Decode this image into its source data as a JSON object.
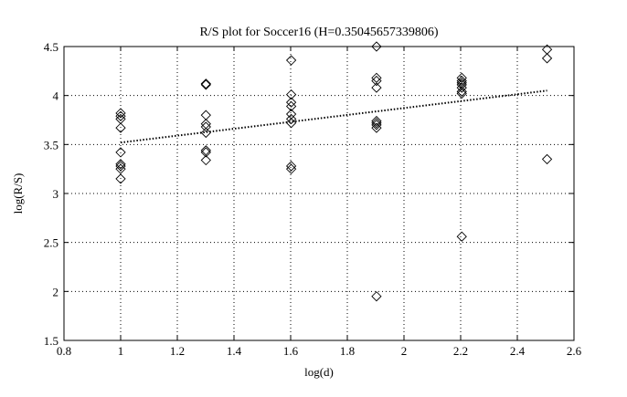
{
  "chart_data": {
    "type": "scatter",
    "title": "R/S plot for Soccer16 (H=0.35045657339806)",
    "xlabel": "log(d)",
    "ylabel": "log(R/S)",
    "xlim": [
      0.8,
      2.6
    ],
    "ylim": [
      1.5,
      4.5
    ],
    "xticks": [
      0.8,
      1,
      1.2,
      1.4,
      1.6,
      1.8,
      2,
      2.2,
      2.4,
      2.6
    ],
    "xtick_labels": [
      "0.8",
      "1",
      "1.2",
      "1.4",
      "1.6",
      "1.8",
      "2",
      "2.2",
      "2.4",
      "2.6"
    ],
    "yticks": [
      1.5,
      2,
      2.5,
      3,
      3.5,
      4,
      4.5
    ],
    "ytick_labels": [
      "1.5",
      "2",
      "2.5",
      "3",
      "3.5",
      "4",
      "4.5"
    ],
    "grid": true,
    "marker": "diamond",
    "points": [
      {
        "x": 1,
        "y": 3.82
      },
      {
        "x": 1,
        "y": 3.79
      },
      {
        "x": 1,
        "y": 3.76
      },
      {
        "x": 1,
        "y": 3.67
      },
      {
        "x": 1,
        "y": 3.42
      },
      {
        "x": 1,
        "y": 3.3
      },
      {
        "x": 1,
        "y": 3.28
      },
      {
        "x": 1,
        "y": 3.25
      },
      {
        "x": 1,
        "y": 3.15
      },
      {
        "x": 1.301,
        "y": 4.12
      },
      {
        "x": 1.301,
        "y": 4.11
      },
      {
        "x": 1.301,
        "y": 3.8
      },
      {
        "x": 1.301,
        "y": 3.71
      },
      {
        "x": 1.301,
        "y": 3.68
      },
      {
        "x": 1.301,
        "y": 3.62
      },
      {
        "x": 1.301,
        "y": 3.44
      },
      {
        "x": 1.301,
        "y": 3.42
      },
      {
        "x": 1.301,
        "y": 3.34
      },
      {
        "x": 1.602,
        "y": 4.36
      },
      {
        "x": 1.602,
        "y": 4.01
      },
      {
        "x": 1.602,
        "y": 3.93
      },
      {
        "x": 1.602,
        "y": 3.89
      },
      {
        "x": 1.602,
        "y": 3.81
      },
      {
        "x": 1.602,
        "y": 3.76
      },
      {
        "x": 1.602,
        "y": 3.72
      },
      {
        "x": 1.602,
        "y": 3.28
      },
      {
        "x": 1.602,
        "y": 3.25
      },
      {
        "x": 1.903,
        "y": 4.5
      },
      {
        "x": 1.903,
        "y": 4.18
      },
      {
        "x": 1.903,
        "y": 4.15
      },
      {
        "x": 1.903,
        "y": 4.08
      },
      {
        "x": 1.903,
        "y": 3.74
      },
      {
        "x": 1.903,
        "y": 3.72
      },
      {
        "x": 1.903,
        "y": 3.7
      },
      {
        "x": 1.903,
        "y": 3.67
      },
      {
        "x": 1.903,
        "y": 1.95
      },
      {
        "x": 2.204,
        "y": 4.18
      },
      {
        "x": 2.204,
        "y": 4.15
      },
      {
        "x": 2.204,
        "y": 4.13
      },
      {
        "x": 2.204,
        "y": 4.11
      },
      {
        "x": 2.204,
        "y": 4.08
      },
      {
        "x": 2.204,
        "y": 4.04
      },
      {
        "x": 2.204,
        "y": 4.02
      },
      {
        "x": 2.204,
        "y": 2.56
      },
      {
        "x": 2.505,
        "y": 4.47
      },
      {
        "x": 2.505,
        "y": 4.38
      },
      {
        "x": 2.505,
        "y": 3.35
      }
    ],
    "fit_line": {
      "style": "dotted",
      "x": [
        1,
        2.505
      ],
      "y": [
        3.52,
        4.05
      ]
    }
  }
}
